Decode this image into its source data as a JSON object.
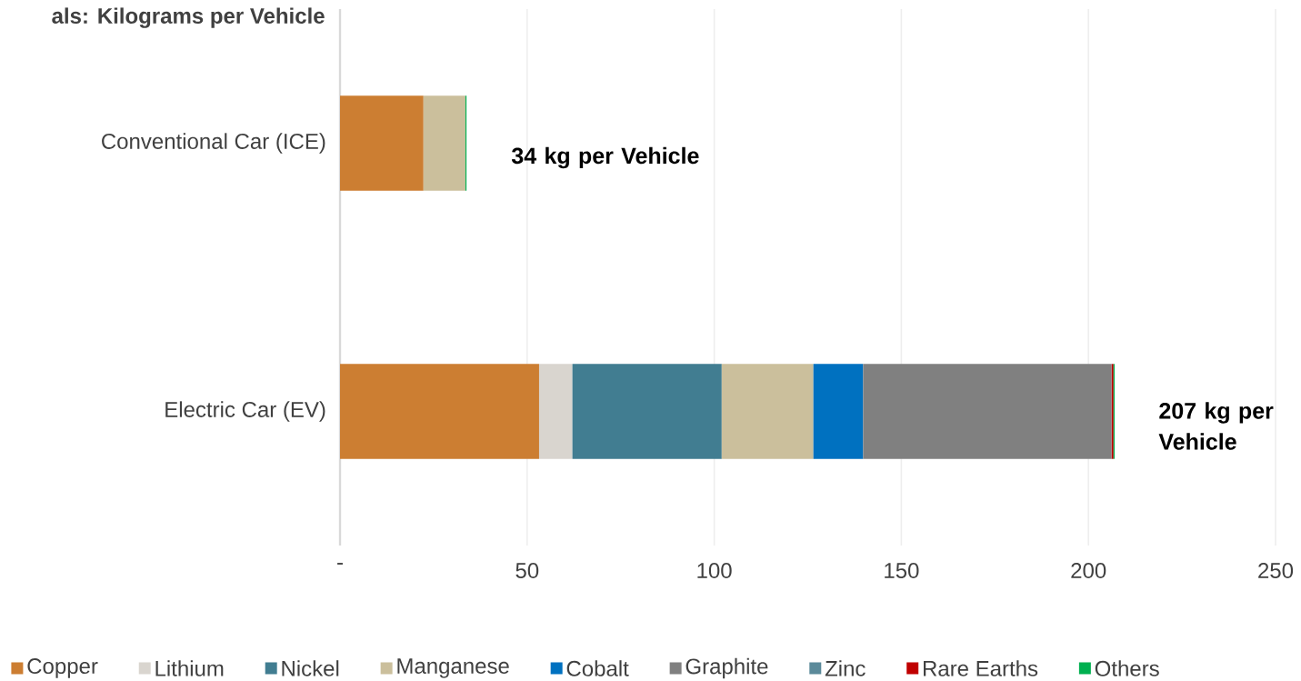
{
  "chart_data": {
    "type": "bar",
    "orientation": "horizontal",
    "stacked": true,
    "title": "als: Kilograms per Vehicle",
    "categories": [
      "Conventional Car (ICE)",
      "Electric Car (EV)"
    ],
    "series": [
      {
        "name": "Copper",
        "color": "#cc7e32",
        "values": [
          22.3,
          53.2
        ]
      },
      {
        "name": "Lithium",
        "color": "#d9d5cf",
        "values": [
          null,
          8.9
        ]
      },
      {
        "name": "Nickel",
        "color": "#417d91",
        "values": [
          null,
          39.9
        ]
      },
      {
        "name": "Manganese",
        "color": "#cbbf9c",
        "values": [
          11.2,
          24.5
        ]
      },
      {
        "name": "Cobalt",
        "color": "#0071c0",
        "values": [
          null,
          13.3
        ]
      },
      {
        "name": "Graphite",
        "color": "#808080",
        "values": [
          null,
          66.3
        ]
      },
      {
        "name": "Zinc",
        "color": "#5b8a9a",
        "values": [
          null,
          0.1
        ]
      },
      {
        "name": "Rare Earths",
        "color": "#c00000",
        "values": [
          null,
          0.5
        ]
      },
      {
        "name": "Others",
        "color": "#00b050",
        "values": [
          0.3,
          0.3
        ]
      }
    ],
    "xlim": [
      0,
      250
    ],
    "xticks": [
      {
        "value": 0,
        "label": "-"
      },
      50,
      100,
      150,
      200,
      250
    ],
    "grid": "x",
    "legend": "bottom",
    "annotations": [
      {
        "text": "34 kg per Vehicle",
        "x": 34,
        "y": "Conventional Car (ICE)"
      },
      {
        "text": "207 kg per Vehicle",
        "x": 207,
        "y": "Electric Car (EV)"
      }
    ]
  }
}
